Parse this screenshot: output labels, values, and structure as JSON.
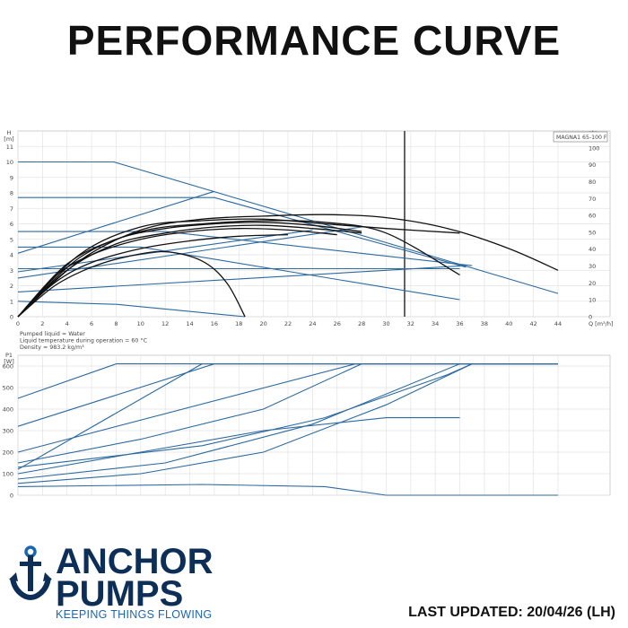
{
  "page": {
    "title": "PERFORMANCE CURVE",
    "last_updated": "LAST UPDATED: 20/04/26 (LH)"
  },
  "brand": {
    "line1": "ANCHOR",
    "line2": "PUMPS",
    "tagline": "KEEPING THINGS FLOWING",
    "colors": {
      "navy": "#0d2f57",
      "blue": "#1a66b3"
    },
    "logo_icon": "anchor-icon"
  },
  "chart_data": [
    {
      "type": "line",
      "model_label": "MAGNA1 65-100 F",
      "xlabel": "Q [m³/h]",
      "ylabel": "H\n[m]",
      "y2label": "eta\n[%]",
      "xlim": [
        0,
        44
      ],
      "ylim": [
        0,
        12
      ],
      "y2lim": [
        0,
        110
      ],
      "xticks": [
        0,
        2,
        4,
        6,
        8,
        10,
        12,
        14,
        16,
        18,
        20,
        22,
        24,
        26,
        28,
        30,
        32,
        34,
        36,
        38,
        40,
        42,
        44
      ],
      "yticks": [
        0,
        1,
        2,
        3,
        4,
        5,
        6,
        7,
        8,
        9,
        10,
        11
      ],
      "y2ticks": [
        0,
        10,
        20,
        30,
        40,
        50,
        60,
        70,
        80,
        90,
        100
      ],
      "grid": true,
      "vline_x": 31.5,
      "notes": [
        "Pumped liquid = Water",
        "Liquid temperature during operation = 60 °C",
        "Density = 983.2 kg/m³"
      ],
      "head_series": [
        {
          "points": [
            [
              0,
              10
            ],
            [
              7.8,
              10
            ],
            [
              44,
              1.5
            ]
          ]
        },
        {
          "points": [
            [
              0,
              7.7
            ],
            [
              16,
              7.7
            ],
            [
              36.5,
              3.2
            ]
          ]
        },
        {
          "points": [
            [
              0,
              5.5
            ],
            [
              12,
              5.5
            ],
            [
              37,
              3.3
            ]
          ]
        },
        {
          "points": [
            [
              0,
              4.5
            ],
            [
              10,
              4.5
            ],
            [
              36,
              1.1
            ]
          ]
        },
        {
          "points": [
            [
              0,
              3.1
            ],
            [
              36,
              3.1
            ]
          ]
        },
        {
          "points": [
            [
              0,
              1.0
            ],
            [
              8,
              0.8
            ],
            [
              18.5,
              0
            ]
          ]
        },
        {
          "points": [
            [
              0,
              4.1
            ],
            [
              16,
              8.1
            ]
          ]
        },
        {
          "points": [
            [
              0,
              2.9
            ],
            [
              24,
              5.6
            ]
          ]
        },
        {
          "points": [
            [
              0,
              1.6
            ],
            [
              36.5,
              3.3
            ]
          ]
        },
        {
          "points": [
            [
              0,
              2.5
            ],
            [
              28,
              5.8
            ]
          ]
        }
      ],
      "eta_series": [
        {
          "points": [
            [
              0,
              0
            ],
            [
              5,
              3.6
            ],
            [
              10,
              5.6
            ],
            [
              15,
              6.3
            ],
            [
              20,
              6.5
            ],
            [
              25,
              6.6
            ],
            [
              30,
              6.4
            ],
            [
              35,
              5.7
            ],
            [
              40,
              4.4
            ],
            [
              44,
              3.0
            ]
          ]
        },
        {
          "points": [
            [
              0,
              0
            ],
            [
              5,
              4.0
            ],
            [
              10,
              5.8
            ],
            [
              15,
              6.2
            ],
            [
              20,
              6.3
            ],
            [
              25,
              6.0
            ],
            [
              30,
              5.7
            ],
            [
              36,
              5.4
            ]
          ]
        },
        {
          "points": [
            [
              0,
              0
            ],
            [
              5,
              3.8
            ],
            [
              10,
              5.5
            ],
            [
              15,
              6.0
            ],
            [
              20,
              6.2
            ],
            [
              25,
              6.1
            ],
            [
              30,
              5.4
            ],
            [
              36,
              2.7
            ]
          ]
        },
        {
          "points": [
            [
              0,
              0
            ],
            [
              4,
              3.4
            ],
            [
              8,
              5.0
            ],
            [
              12,
              5.7
            ],
            [
              16,
              6.0
            ],
            [
              20,
              6.1
            ],
            [
              24,
              5.9
            ],
            [
              28,
              5.5
            ]
          ]
        },
        {
          "points": [
            [
              0,
              0
            ],
            [
              4,
              3.0
            ],
            [
              8,
              4.7
            ],
            [
              12,
              5.4
            ],
            [
              16,
              5.8
            ],
            [
              20,
              5.9
            ],
            [
              24,
              5.7
            ],
            [
              28,
              5.4
            ]
          ]
        },
        {
          "points": [
            [
              0,
              0
            ],
            [
              3,
              2.6
            ],
            [
              6,
              4.0
            ],
            [
              10,
              5.0
            ],
            [
              14,
              5.5
            ],
            [
              18,
              5.7
            ],
            [
              22,
              5.6
            ],
            [
              26,
              5.3
            ]
          ]
        },
        {
          "points": [
            [
              0,
              0
            ],
            [
              3,
              2.2
            ],
            [
              6,
              3.5
            ],
            [
              10,
              4.4
            ],
            [
              14,
              4.9
            ],
            [
              18,
              5.2
            ],
            [
              22,
              5.3
            ]
          ]
        },
        {
          "points": [
            [
              0,
              0
            ],
            [
              3,
              2.0
            ],
            [
              6,
              3.2
            ],
            [
              9,
              3.9
            ],
            [
              12,
              4.2
            ],
            [
              15,
              3.6
            ],
            [
              17,
              2.2
            ],
            [
              18.5,
              0
            ]
          ]
        }
      ]
    },
    {
      "type": "line",
      "ylabel": "P1\n[W]",
      "xlim": [
        0,
        44
      ],
      "ylim": [
        0,
        650
      ],
      "yticks": [
        0,
        100,
        200,
        300,
        400,
        500,
        600
      ],
      "grid": true,
      "power_series": [
        {
          "points": [
            [
              0,
              450
            ],
            [
              8,
              610
            ],
            [
              44,
              610
            ]
          ]
        },
        {
          "points": [
            [
              0,
              320
            ],
            [
              16,
              610
            ],
            [
              44,
              610
            ]
          ]
        },
        {
          "points": [
            [
              0,
              120
            ],
            [
              15,
              610
            ],
            [
              44,
              610
            ]
          ]
        },
        {
          "points": [
            [
              0,
              200
            ],
            [
              27.5,
              610
            ],
            [
              44,
              610
            ]
          ]
        },
        {
          "points": [
            [
              0,
              150
            ],
            [
              10,
              260
            ],
            [
              20,
              400
            ],
            [
              28,
              610
            ],
            [
              44,
              610
            ]
          ]
        },
        {
          "points": [
            [
              0,
              100
            ],
            [
              10,
              200
            ],
            [
              20,
              300
            ],
            [
              30,
              360
            ],
            [
              36,
              360
            ]
          ]
        },
        {
          "points": [
            [
              0,
              130
            ],
            [
              15,
              230
            ],
            [
              25,
              360
            ],
            [
              35,
              560
            ],
            [
              37,
              610
            ],
            [
              44,
              610
            ]
          ]
        },
        {
          "points": [
            [
              0,
              75
            ],
            [
              12,
              150
            ],
            [
              24,
              330
            ],
            [
              36,
              610
            ],
            [
              44,
              610
            ]
          ]
        },
        {
          "points": [
            [
              0,
              55
            ],
            [
              10,
              100
            ],
            [
              20,
              200
            ],
            [
              30,
              420
            ],
            [
              37,
              610
            ]
          ]
        },
        {
          "points": [
            [
              0,
              40
            ],
            [
              15,
              50
            ],
            [
              25,
              40
            ],
            [
              30,
              0
            ],
            [
              44,
              0
            ]
          ]
        }
      ]
    }
  ]
}
